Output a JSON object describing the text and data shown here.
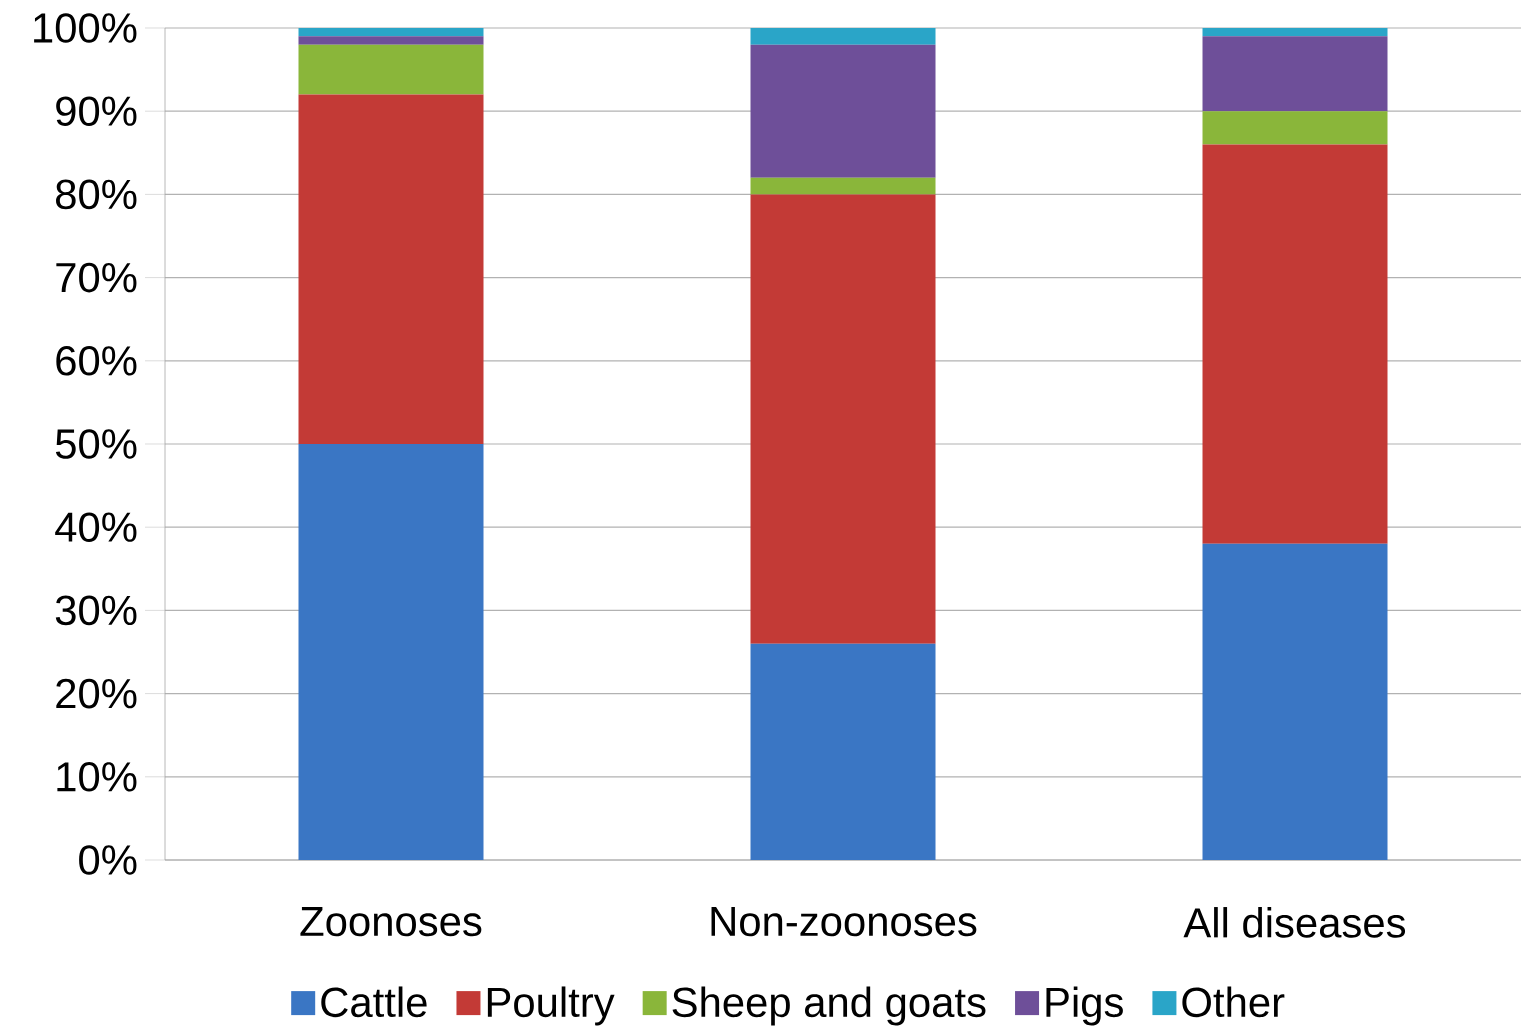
{
  "chart_data": {
    "type": "bar",
    "stacked": true,
    "categories": [
      "Zoonoses",
      "Non-zoonoses",
      "All diseases"
    ],
    "series": [
      {
        "name": "Cattle",
        "color": "#3a76c4",
        "values": [
          50,
          26,
          38
        ]
      },
      {
        "name": "Poultry",
        "color": "#c33a36",
        "values": [
          42,
          54,
          48
        ]
      },
      {
        "name": "Sheep and goats",
        "color": "#8ab63a",
        "values": [
          6,
          2,
          4
        ]
      },
      {
        "name": "Pigs",
        "color": "#6e4f99",
        "values": [
          1,
          16,
          9
        ]
      },
      {
        "name": "Other",
        "color": "#2aa5c8",
        "values": [
          1,
          2,
          1
        ]
      }
    ],
    "ylim": [
      0,
      100
    ],
    "yticks": [
      {
        "value": 0,
        "label": "0%"
      },
      {
        "value": 10,
        "label": "10%"
      },
      {
        "value": 20,
        "label": "20%"
      },
      {
        "value": 30,
        "label": "30%"
      },
      {
        "value": 40,
        "label": "40%"
      },
      {
        "value": 50,
        "label": "50%"
      },
      {
        "value": 60,
        "label": "60%"
      },
      {
        "value": 70,
        "label": "70%"
      },
      {
        "value": 80,
        "label": "80%"
      },
      {
        "value": 90,
        "label": "90%"
      },
      {
        "value": 100,
        "label": "100%"
      }
    ],
    "grid": "y",
    "legend": "bottom"
  }
}
